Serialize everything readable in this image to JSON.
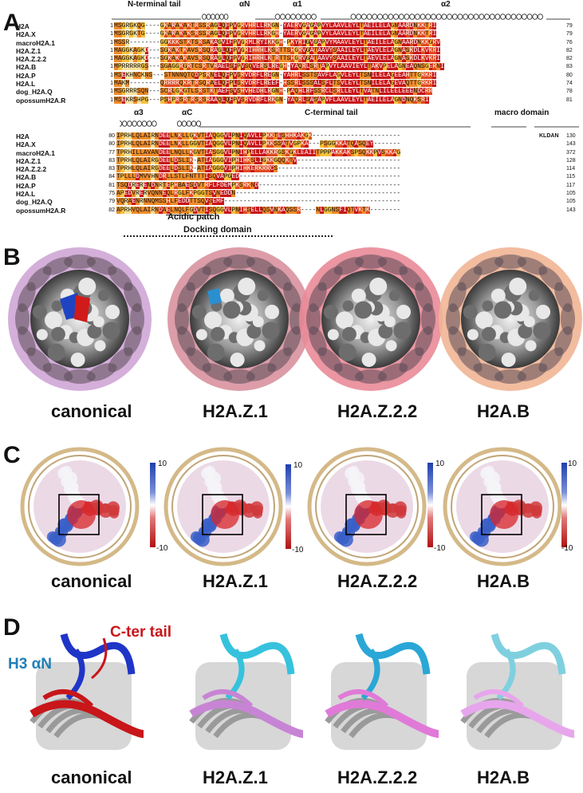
{
  "panels": {
    "a": "A",
    "b": "B",
    "c": "C",
    "d": "D"
  },
  "alignment": {
    "block1": {
      "region_labels": {
        "nterm": "N-terminal tail",
        "alphaN": "αN",
        "alpha1": "α1",
        "alpha2": "α2"
      },
      "names": [
        "H2A",
        "H2A.X",
        "macroH2A.1",
        "H2A.Z.1",
        "H2A.Z.2.2",
        "H2A.B",
        "H2A.P",
        "H2A.L",
        "dog_H2A.Q",
        "opossumH2A.R"
      ],
      "starts": [
        "1",
        "1",
        "1",
        "1",
        "1",
        "1",
        "1",
        "1",
        "1",
        "1"
      ],
      "seqs": [
        "MSGRGKQG----GKARAKAKTRSSRAGLQFPVGRVHRLLRKGN-YAERVGAGAPVYLAAVLEYLTAEILELAGNAARDNKKTRI",
        "MSGRGKTG----GKARAKAKSRSSRAGLQFPVGRVHRLLRKGH-YAERVGAGAPVYLAAVLEYLTAEILELAGNAARDNKKTRI",
        "MSSR--------GGKKKSTKTSRSAKAGVIFPVGRMLRYIKKGH-PKYRIGVGAPVYMAAVLEYLTAEILELAGNAARDNKKGRV",
        "MAGGKAGKD---SGKAKTKAVSRSQRAGLQFPVGRIHRHLKSRTTSHGRVGATAAVYSAAILEYLTAEVLELAGNASKDLKVKRI",
        "MAGGKAGKD---SGKAKAKAVSRSQRAGLQFPVGRIHRHLKTRTTSHGRVGATAAVYSAAILEYLTAEVLELAGNASKDLKVKRI",
        "MPRRRRRGS---SGAGGRGRTCSRTVRAELSFPVSQVERSLREGH-YAQRLSRTAPVYLAAVIEYLTAKVPELAGNEAQNSGERNI",
        "MSEKHNCKNS---STNNNQTQDPSRNELQFPVSRVDRFLREGN-YAHRLSSTSAVFLAGVLEYLTSNILELAGEEAHTTGRKRI",
        "MAKM--------QRRRRQKRTRSQRAELQFPLSRVDRFLREEF-HSSRLSSSALSFLTSVLEYLTSNILELAGEVAQTTGRKRI",
        "MSGRRRSQN---SCRLGKGTLSRSTKTAEFSVSHVHEDHLRGNH-PAQHLRFSSRCLSRLLEYLTVATNLILEELEEENDCRR",
        "MSEKRSHPG---PSHPRSRTRSRSRAAQLQFPVSRVDRFLRKGN-YAQRLSASAPVFLAAVLEYLTAEILELAGNDNQKSRI"
      ],
      "ends": [
        "79",
        "79",
        "76",
        "82",
        "82",
        "83",
        "80",
        "74",
        "78",
        "81"
      ]
    },
    "block2": {
      "region_labels": {
        "alpha3": "α3",
        "alphaC": "αC",
        "cterm": "C-terminal tail",
        "macro": "macro domain"
      },
      "names": [
        "H2A",
        "H2A.X",
        "macroH2A.1",
        "H2A.Z.1",
        "H2A.Z.2.2",
        "H2A.B",
        "H2A.P",
        "H2A.L",
        "dog_H2A.Q",
        "opossumH2A.R"
      ],
      "starts": [
        "80",
        "80",
        "77",
        "83",
        "83",
        "84",
        "81",
        "75",
        "79",
        "82"
      ],
      "seqs": [
        "IPRHLQLAIRNDEELNKLLGKVTIAQGGVLPNIQAVLLPKKTESHHKAKGK------------------------",
        "IPRHLQLAIRNDEELNKLLGGVTIAQGGVLPNIQAVLLPKKSSATVGPKA---PSGGKKATQASQEY--------",
        "TPRHILLAVANDEELNQLLKGVTIASGGVLPNIHPELLAKKRGSKGKLEAIITPPPAKKAKSPSQKKPVSKKAG",
        "TPRHLQLAIRGDEELDSLIK-ATIAGGGVIPHIHKSLIGKKGQQKTV----------------------------",
        "TPRHLQLAIRGDEELDSLIK-ATIAGGGVIPHIHKERKRRCS---------------------------------",
        "TPLLLDMVVHNDRLLSTLFNTTTISQVAPGED-------------------------------------------",
        "TSQDRERENDNRTEPHBAESDVTRFLFDEMPKSRKND--------------------------------------",
        "APEDVRERVQNNEQLRGLFKPGGTSVNEDDN--------------------------------------------",
        "VQRAENRNNQMSSHLFEDDTTSQVSEMF-----------------------------------------------",
        "APRHVQLAIRNDAELNQLFGDVTISQGGVLPNIHSELLQSVNKAQSSR----NLGGNSFIQTVKTK---------"
      ],
      "ends": [
        "130",
        "143",
        "372",
        "128",
        "114",
        "115",
        "117",
        "105",
        "105",
        "143"
      ],
      "macro_fragment": "KLDAN",
      "acidic_patch": "Acidic patch",
      "docking_domain": "Docking domain"
    }
  },
  "maps": {
    "b": [
      "canonical",
      "H2A.Z.1",
      "H2A.Z.2.2",
      "H2A.B"
    ],
    "c": [
      "canonical",
      "H2A.Z.1",
      "H2A.Z.2.2",
      "H2A.B"
    ],
    "c_scale": {
      "max": "10",
      "min": "-10"
    },
    "d": [
      "canonical",
      "H2A.Z.1",
      "H2A.Z.2.2",
      "H2A.B"
    ],
    "d_labels": {
      "h3": "H3 αN",
      "cter": "C-ter tail"
    }
  },
  "colors": {
    "deep_red": "#c8161a",
    "red": "#e04a1f",
    "orange": "#f08c2a",
    "yellow": "#f7c23c",
    "pale": "#fbe3a0",
    "pink": "#f0a6b3",
    "lilac": "#d8b4dc",
    "peach": "#f4c6a8",
    "blue": "#1f44c2",
    "cyan": "#2bb5d8"
  }
}
